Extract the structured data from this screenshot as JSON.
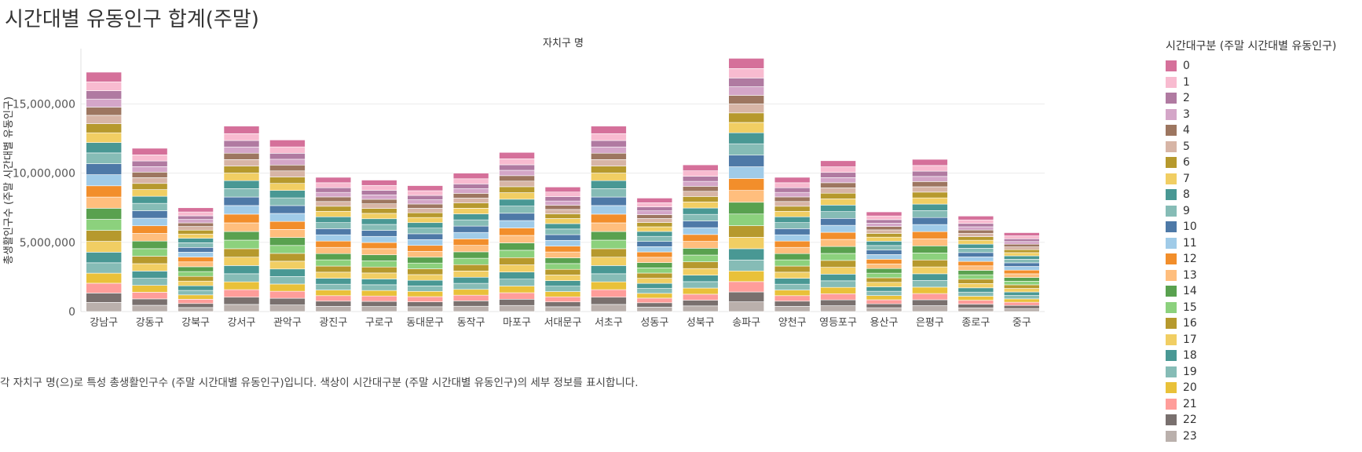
{
  "title": "시간대별 유동인구 합계(주말)",
  "caption": "각 자치구 명(으)로 특성 총생활인구수 (주말 시간대별 유동인구)입니다.  색상이 시간대구분 (주말 시간대별 유동인구)의 세부 정보를 표시합니다.",
  "chart_data": {
    "type": "bar",
    "stacked": true,
    "title": "자치구 명",
    "xlabel": "",
    "ylabel": "총생활인구수 (주말 시간대별 유동인구)",
    "ylim": [
      0,
      19000000
    ],
    "yticks": [
      0,
      5000000,
      10000000,
      15000000
    ],
    "ytick_labels": [
      "0",
      "5,000,000",
      "10,000,000",
      "15,000,000"
    ],
    "grid": true,
    "legend_title": "시간대구분 (주말 시간대별 유동인구)",
    "legend_position": "right",
    "categories": [
      "강남구",
      "강동구",
      "강북구",
      "강서구",
      "관악구",
      "광진구",
      "구로구",
      "동대문구",
      "동작구",
      "마포구",
      "서대문구",
      "서초구",
      "성동구",
      "성북구",
      "송파구",
      "양천구",
      "영등포구",
      "용산구",
      "은평구",
      "종로구",
      "중구"
    ],
    "totals": [
      17300000,
      11800000,
      7500000,
      13400000,
      12400000,
      9700000,
      9500000,
      9100000,
      10000000,
      11500000,
      9000000,
      13400000,
      8200000,
      10600000,
      18300000,
      9700000,
      10900000,
      7200000,
      11000000,
      6900000,
      5700000
    ],
    "hour_share": [
      0.0395,
      0.0365,
      0.034,
      0.033,
      0.0335,
      0.0345,
      0.037,
      0.04,
      0.0425,
      0.044,
      0.045,
      0.0455,
      0.046,
      0.0458,
      0.0455,
      0.0452,
      0.0448,
      0.0442,
      0.0435,
      0.0425,
      0.0412,
      0.04,
      0.0382,
      0.0376
    ],
    "series": [
      {
        "name": "0",
        "color": "#d5709a"
      },
      {
        "name": "1",
        "color": "#f8bbd0"
      },
      {
        "name": "2",
        "color": "#b07aa1"
      },
      {
        "name": "3",
        "color": "#d4a6c8"
      },
      {
        "name": "4",
        "color": "#9d7660"
      },
      {
        "name": "5",
        "color": "#d7b5a6"
      },
      {
        "name": "6",
        "color": "#b6992d"
      },
      {
        "name": "7",
        "color": "#f1ce63"
      },
      {
        "name": "8",
        "color": "#499894"
      },
      {
        "name": "9",
        "color": "#86bcb6"
      },
      {
        "name": "10",
        "color": "#4e79a7"
      },
      {
        "name": "11",
        "color": "#a0cbe8"
      },
      {
        "name": "12",
        "color": "#f28e2b"
      },
      {
        "name": "13",
        "color": "#ffbe7d"
      },
      {
        "name": "14",
        "color": "#59a14f"
      },
      {
        "name": "15",
        "color": "#8cd17d"
      },
      {
        "name": "16",
        "color": "#b6992d"
      },
      {
        "name": "17",
        "color": "#f1ce63"
      },
      {
        "name": "18",
        "color": "#499894"
      },
      {
        "name": "19",
        "color": "#86bcb6"
      },
      {
        "name": "20",
        "color": "#e9c139"
      },
      {
        "name": "21",
        "color": "#ff9d9a"
      },
      {
        "name": "22",
        "color": "#79706e"
      },
      {
        "name": "23",
        "color": "#bab0ac"
      }
    ]
  }
}
